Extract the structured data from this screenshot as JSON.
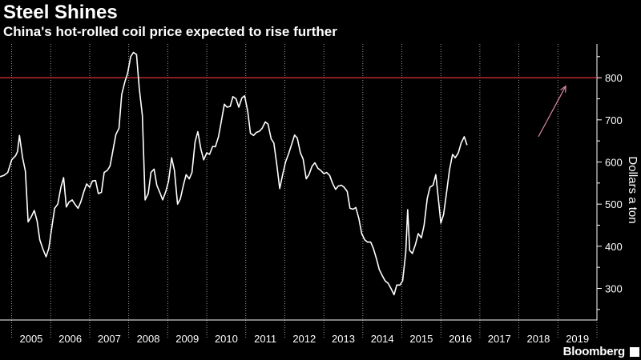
{
  "header": {
    "title": "Steel Shines",
    "subtitle": "China's hot-rolled coil price expected to rise further"
  },
  "brand": "Bloomberg",
  "colors": {
    "background": "#000000",
    "line": "#ffffff",
    "reference": "#e0303a",
    "arrow": "#e08aa0",
    "grid": "#bfbfbf"
  },
  "chart_data": {
    "type": "line",
    "title": "Steel Shines",
    "subtitle": "China's hot-rolled coil price expected to rise further",
    "xlabel": "",
    "ylabel": "Dollars a ton",
    "xlim": [
      2004.2,
      2019.5
    ],
    "ylim": [
      225,
      880
    ],
    "y_ticks": [
      300,
      400,
      500,
      600,
      700,
      800
    ],
    "x_tick_labels": [
      "2005",
      "2006",
      "2007",
      "2008",
      "2009",
      "2010",
      "2011",
      "2012",
      "2013",
      "2014",
      "2015",
      "2016",
      "2017",
      "2018",
      "2019"
    ],
    "reference_line": {
      "y": 800
    },
    "annotation": {
      "type": "arrow",
      "from": [
        2018.0,
        660
      ],
      "to": [
        2018.7,
        780
      ]
    },
    "grid": "vertical dotted",
    "series": [
      {
        "values": [
          [
            2004.2,
            565
          ],
          [
            2004.3,
            568
          ],
          [
            2004.4,
            575
          ],
          [
            2004.5,
            605
          ],
          [
            2004.6,
            615
          ],
          [
            2004.65,
            625
          ],
          [
            2004.7,
            663
          ],
          [
            2004.78,
            610
          ],
          [
            2004.85,
            578
          ],
          [
            2004.92,
            458
          ],
          [
            2005.0,
            470
          ],
          [
            2005.08,
            485
          ],
          [
            2005.15,
            460
          ],
          [
            2005.22,
            415
          ],
          [
            2005.3,
            393
          ],
          [
            2005.38,
            375
          ],
          [
            2005.45,
            395
          ],
          [
            2005.52,
            440
          ],
          [
            2005.6,
            490
          ],
          [
            2005.68,
            500
          ],
          [
            2005.76,
            540
          ],
          [
            2005.83,
            563
          ],
          [
            2005.9,
            493
          ],
          [
            2005.97,
            505
          ],
          [
            2006.05,
            510
          ],
          [
            2006.12,
            500
          ],
          [
            2006.2,
            490
          ],
          [
            2006.27,
            505
          ],
          [
            2006.35,
            530
          ],
          [
            2006.42,
            548
          ],
          [
            2006.5,
            540
          ],
          [
            2006.57,
            555
          ],
          [
            2006.65,
            556
          ],
          [
            2006.72,
            525
          ],
          [
            2006.8,
            528
          ],
          [
            2006.87,
            575
          ],
          [
            2006.95,
            580
          ],
          [
            2007.02,
            590
          ],
          [
            2007.1,
            630
          ],
          [
            2007.17,
            665
          ],
          [
            2007.25,
            680
          ],
          [
            2007.32,
            760
          ],
          [
            2007.4,
            790
          ],
          [
            2007.47,
            810
          ],
          [
            2007.55,
            850
          ],
          [
            2007.62,
            860
          ],
          [
            2007.7,
            855
          ],
          [
            2007.77,
            775
          ],
          [
            2007.85,
            710
          ],
          [
            2007.92,
            510
          ],
          [
            2008.0,
            525
          ],
          [
            2008.07,
            575
          ],
          [
            2008.15,
            583
          ],
          [
            2008.22,
            545
          ],
          [
            2008.3,
            527
          ],
          [
            2008.37,
            510
          ],
          [
            2008.45,
            530
          ],
          [
            2008.52,
            555
          ],
          [
            2008.6,
            610
          ],
          [
            2008.67,
            580
          ],
          [
            2008.75,
            500
          ],
          [
            2008.82,
            512
          ],
          [
            2008.9,
            545
          ],
          [
            2008.97,
            570
          ],
          [
            2009.05,
            560
          ],
          [
            2009.12,
            575
          ],
          [
            2009.2,
            648
          ],
          [
            2009.27,
            672
          ],
          [
            2009.35,
            630
          ],
          [
            2009.42,
            605
          ],
          [
            2009.5,
            622
          ],
          [
            2009.57,
            618
          ],
          [
            2009.65,
            637
          ],
          [
            2009.72,
            636
          ],
          [
            2009.8,
            660
          ],
          [
            2009.87,
            695
          ],
          [
            2009.95,
            737
          ],
          [
            2010.02,
            730
          ],
          [
            2010.1,
            732
          ],
          [
            2010.17,
            755
          ],
          [
            2010.25,
            750
          ],
          [
            2010.32,
            730
          ],
          [
            2010.4,
            752
          ],
          [
            2010.47,
            757
          ],
          [
            2010.55,
            720
          ],
          [
            2010.62,
            668
          ],
          [
            2010.7,
            663
          ],
          [
            2010.77,
            670
          ],
          [
            2010.85,
            673
          ],
          [
            2010.92,
            680
          ],
          [
            2011.0,
            695
          ],
          [
            2011.07,
            690
          ],
          [
            2011.15,
            655
          ],
          [
            2011.22,
            645
          ],
          [
            2011.3,
            590
          ],
          [
            2011.37,
            537
          ],
          [
            2011.45,
            572
          ],
          [
            2011.52,
            600
          ],
          [
            2011.6,
            620
          ],
          [
            2011.67,
            640
          ],
          [
            2011.75,
            664
          ],
          [
            2011.82,
            657
          ],
          [
            2011.9,
            622
          ],
          [
            2011.97,
            607
          ],
          [
            2012.05,
            560
          ],
          [
            2012.12,
            570
          ],
          [
            2012.2,
            590
          ],
          [
            2012.27,
            598
          ],
          [
            2012.35,
            585
          ],
          [
            2012.42,
            580
          ],
          [
            2012.5,
            572
          ],
          [
            2012.57,
            575
          ],
          [
            2012.65,
            568
          ],
          [
            2012.72,
            550
          ],
          [
            2012.8,
            535
          ],
          [
            2012.87,
            543
          ],
          [
            2012.95,
            545
          ],
          [
            2013.02,
            540
          ],
          [
            2013.1,
            530
          ],
          [
            2013.17,
            490
          ],
          [
            2013.25,
            488
          ],
          [
            2013.32,
            492
          ],
          [
            2013.4,
            465
          ],
          [
            2013.47,
            430
          ],
          [
            2013.55,
            415
          ],
          [
            2013.62,
            410
          ],
          [
            2013.7,
            410
          ],
          [
            2013.77,
            395
          ],
          [
            2013.85,
            370
          ],
          [
            2013.92,
            345
          ],
          [
            2014.0,
            330
          ],
          [
            2014.07,
            318
          ],
          [
            2014.15,
            312
          ],
          [
            2014.22,
            300
          ],
          [
            2014.3,
            285
          ],
          [
            2014.37,
            308
          ],
          [
            2014.45,
            308
          ],
          [
            2014.52,
            318
          ],
          [
            2014.6,
            385
          ],
          [
            2014.65,
            487
          ],
          [
            2014.7,
            390
          ],
          [
            2014.77,
            383
          ],
          [
            2014.85,
            405
          ],
          [
            2014.92,
            430
          ],
          [
            2015.0,
            420
          ],
          [
            2015.07,
            450
          ],
          [
            2015.15,
            513
          ],
          [
            2015.22,
            540
          ],
          [
            2015.3,
            545
          ],
          [
            2015.37,
            570
          ],
          [
            2015.45,
            500
          ],
          [
            2015.5,
            455
          ],
          [
            2015.57,
            475
          ],
          [
            2015.65,
            530
          ],
          [
            2015.72,
            580
          ],
          [
            2015.8,
            618
          ],
          [
            2015.87,
            610
          ],
          [
            2015.95,
            622
          ],
          [
            2016.02,
            645
          ],
          [
            2016.1,
            660
          ],
          [
            2016.17,
            640
          ]
        ]
      }
    ]
  }
}
